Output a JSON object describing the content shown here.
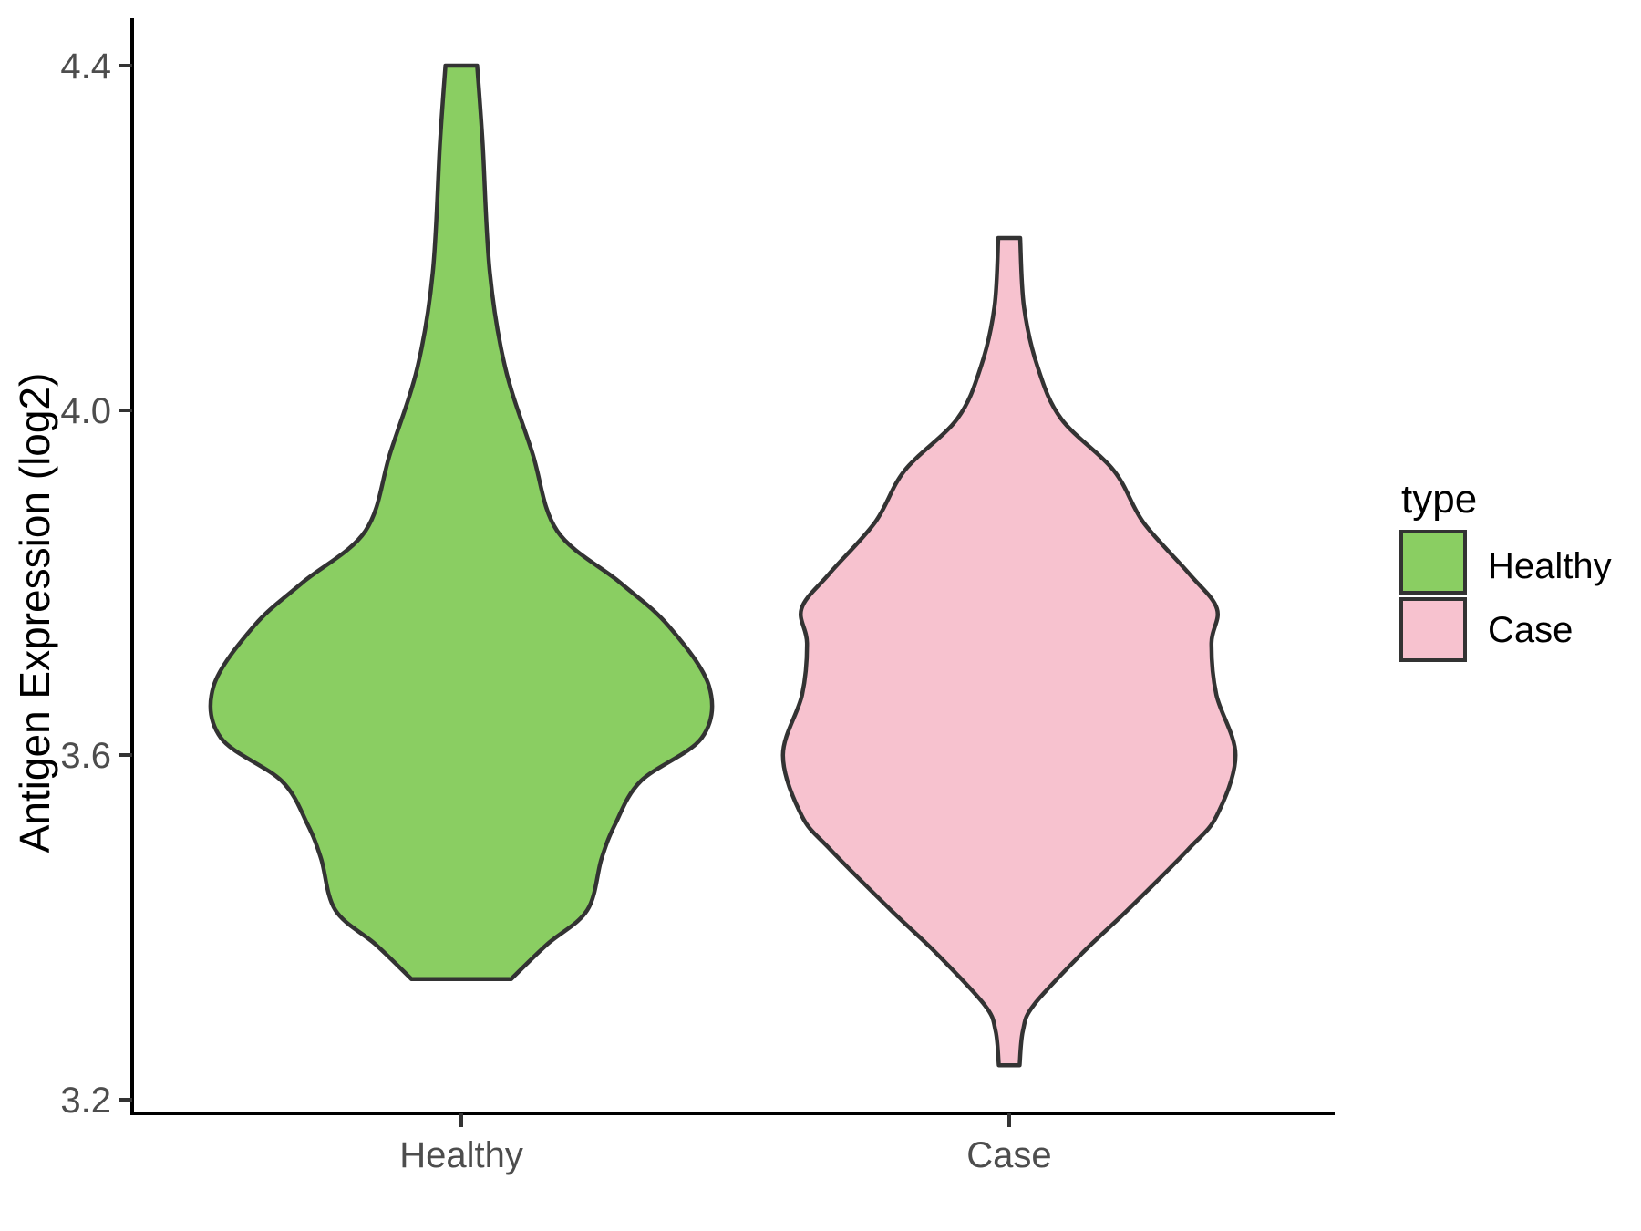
{
  "figure": {
    "background": "#ffffff"
  },
  "y_axis": {
    "title": "Antigen Expression (log2)",
    "tick_labels": [
      "4.4",
      "4.0",
      "3.6",
      "3.2"
    ]
  },
  "x_axis": {
    "tick_labels": [
      "Healthy",
      "Case"
    ]
  },
  "legend": {
    "title": "type",
    "entries": [
      {
        "label": "Healthy",
        "color": "#8ACE62"
      },
      {
        "label": "Case",
        "color": "#F7C2CF"
      }
    ]
  },
  "chart_data": {
    "type": "violin",
    "categories": [
      "Healthy",
      "Case"
    ],
    "title": "",
    "xlabel": "",
    "ylabel": "Antigen Expression (log2)",
    "ylim": [
      3.18,
      4.46
    ],
    "y_ticks": [
      3.2,
      3.6,
      4.0,
      4.4
    ],
    "grid": "off",
    "legend_position": "right",
    "legend_title": "type",
    "outline_color": "#333333",
    "series": [
      {
        "name": "Healthy",
        "fill": "#8ACE62",
        "outline": "#333333",
        "y_min": 3.34,
        "y_max": 4.4,
        "peak_density_at": 3.68,
        "profile": [
          {
            "v": 4.4,
            "w": 0.029
          },
          {
            "v": 4.31,
            "w": 0.039
          },
          {
            "v": 4.16,
            "w": 0.052
          },
          {
            "v": 4.05,
            "w": 0.08
          },
          {
            "v": 3.95,
            "w": 0.13
          },
          {
            "v": 3.86,
            "w": 0.175
          },
          {
            "v": 3.8,
            "w": 0.29
          },
          {
            "v": 3.75,
            "w": 0.378
          },
          {
            "v": 3.68,
            "w": 0.452
          },
          {
            "v": 3.62,
            "w": 0.439
          },
          {
            "v": 3.57,
            "w": 0.328
          },
          {
            "v": 3.52,
            "w": 0.281
          },
          {
            "v": 3.48,
            "w": 0.256
          },
          {
            "v": 3.42,
            "w": 0.23
          },
          {
            "v": 3.38,
            "w": 0.156
          },
          {
            "v": 3.34,
            "w": 0.091
          }
        ]
      },
      {
        "name": "Case",
        "fill": "#F7C2CF",
        "outline": "#333333",
        "y_min": 3.24,
        "y_max": 4.2,
        "peak_density_at": 3.6,
        "profile": [
          {
            "v": 4.2,
            "w": 0.02
          },
          {
            "v": 4.12,
            "w": 0.027
          },
          {
            "v": 4.05,
            "w": 0.052
          },
          {
            "v": 3.99,
            "w": 0.095
          },
          {
            "v": 3.93,
            "w": 0.191
          },
          {
            "v": 3.87,
            "w": 0.245
          },
          {
            "v": 3.81,
            "w": 0.329
          },
          {
            "v": 3.77,
            "w": 0.379
          },
          {
            "v": 3.73,
            "w": 0.369
          },
          {
            "v": 3.67,
            "w": 0.378
          },
          {
            "v": 3.6,
            "w": 0.413
          },
          {
            "v": 3.53,
            "w": 0.379
          },
          {
            "v": 3.49,
            "w": 0.326
          },
          {
            "v": 3.42,
            "w": 0.216
          },
          {
            "v": 3.37,
            "w": 0.133
          },
          {
            "v": 3.31,
            "w": 0.045
          },
          {
            "v": 3.28,
            "w": 0.025
          },
          {
            "v": 3.24,
            "w": 0.019
          }
        ]
      }
    ]
  }
}
